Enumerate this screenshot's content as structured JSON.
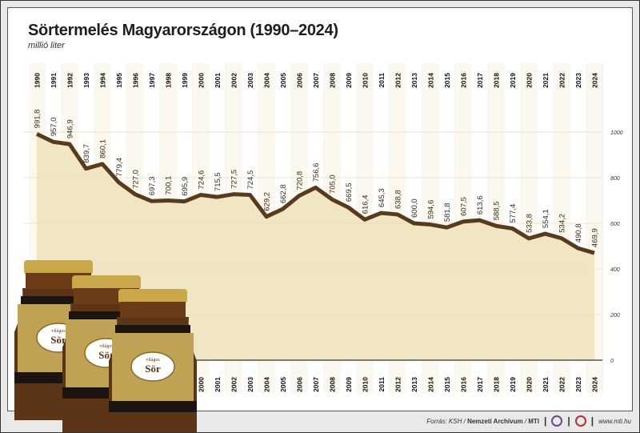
{
  "chart_data": {
    "type": "area",
    "title": "Sörtermelés Magyarországon (1990–2024)",
    "subtitle": "millió liter",
    "categories": [
      "1990",
      "1991",
      "1992",
      "1993",
      "1994",
      "1995",
      "1996",
      "1997",
      "1998",
      "1999",
      "2000",
      "2001",
      "2002",
      "2003",
      "2004",
      "2005",
      "2006",
      "2007",
      "2008",
      "2009",
      "2010",
      "2011",
      "2012",
      "2013",
      "2014",
      "2015",
      "2016",
      "2017",
      "2018",
      "2019",
      "2020",
      "2021",
      "2022",
      "2023",
      "2024"
    ],
    "values": [
      991.8,
      957.0,
      946.9,
      839.7,
      860.1,
      779.4,
      727.0,
      697.3,
      700.1,
      695.9,
      724.6,
      715.5,
      727.5,
      724.5,
      629.2,
      662.8,
      720.8,
      756.6,
      705.0,
      669.5,
      616.4,
      645.3,
      638.8,
      600.0,
      594.6,
      581.8,
      607.5,
      613.6,
      588.5,
      577.4,
      533.8,
      554.1,
      534.2,
      490.8,
      469.9
    ],
    "value_labels": [
      "991,8",
      "957,0",
      "946,9",
      "839,7",
      "860,1",
      "779,4",
      "727,0",
      "697,3",
      "700,1",
      "695,9",
      "724,6",
      "715,5",
      "727,5",
      "724,5",
      "629,2",
      "662,8",
      "720,8",
      "756,6",
      "705,0",
      "669,5",
      "616,4",
      "645,3",
      "638,8",
      "600,0",
      "594,6",
      "581,8",
      "607,5",
      "613,6",
      "588,5",
      "577,4",
      "533,8",
      "554,1",
      "534,2",
      "490,8",
      "469,9"
    ],
    "yticks": [
      "0",
      "200",
      "400",
      "600",
      "800",
      "1000"
    ],
    "ylim": [
      0,
      1000
    ],
    "grid": true,
    "colors": {
      "line": "#5a3a1c",
      "fill": "#f1e6c4",
      "column": "#fbf8ef"
    }
  },
  "footer": {
    "source_prefix": "Forrás: KSH / ",
    "archive": "Nemzeti Archívum",
    "slash": " / ",
    "mti": "MTI",
    "url": "www.mti.hu"
  },
  "illustration": {
    "bottle_label_top": "világos",
    "bottle_label_main": "Sör"
  }
}
